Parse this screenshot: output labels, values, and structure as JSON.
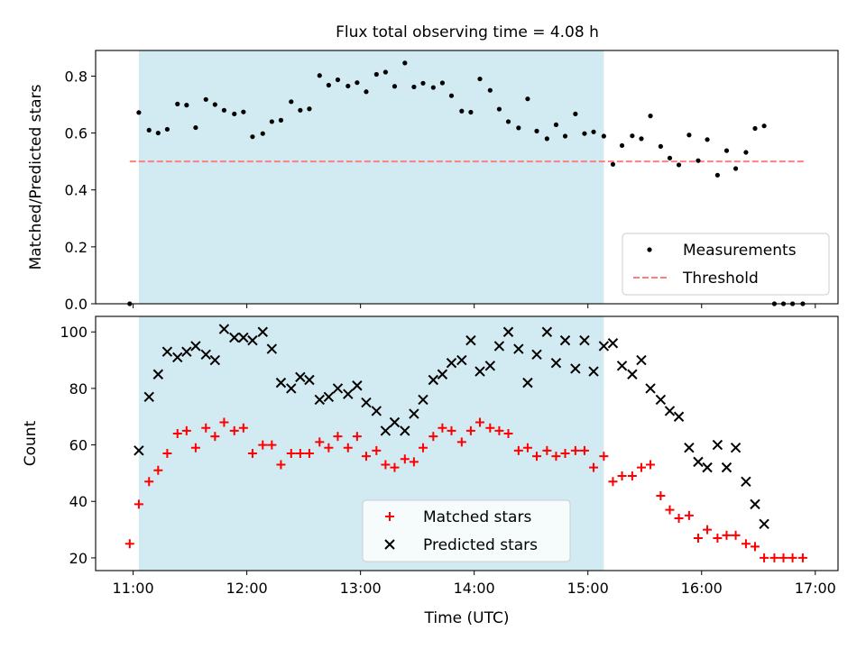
{
  "title": "Flux total observing time = 4.08 h",
  "colors": {
    "span": "#add8e6",
    "threshold": "#ff7f7f",
    "matched": "#ff0000",
    "predicted": "#000000",
    "measurement": "#000000"
  },
  "chart_data": [
    {
      "type": "scatter",
      "id": "ratio",
      "ylabel": "Matched/Predicted stars",
      "ylim": [
        0,
        0.89
      ],
      "yticks": [
        0.0,
        0.2,
        0.4,
        0.6,
        0.8
      ],
      "ytick_labels": [
        "0.0",
        "0.2",
        "0.4",
        "0.6",
        "0.8"
      ],
      "xlim": [
        10.67,
        17.2
      ],
      "shaded_span": [
        11.05,
        15.14
      ],
      "legend": {
        "location": "lower-right",
        "entries": [
          "Measurements",
          "Threshold"
        ]
      },
      "threshold": {
        "name": "Threshold",
        "y": 0.5,
        "x": [
          10.97,
          16.9
        ],
        "style": "dashed"
      },
      "series": [
        {
          "name": "Measurements",
          "marker": "dot",
          "points": [
            [
              10.97,
              0.0
            ],
            [
              11.05,
              0.672
            ],
            [
              11.14,
              0.61
            ],
            [
              11.22,
              0.6
            ],
            [
              11.3,
              0.613
            ],
            [
              11.39,
              0.702
            ],
            [
              11.47,
              0.698
            ],
            [
              11.55,
              0.619
            ],
            [
              11.64,
              0.718
            ],
            [
              11.72,
              0.7
            ],
            [
              11.8,
              0.68
            ],
            [
              11.89,
              0.667
            ],
            [
              11.97,
              0.674
            ],
            [
              12.05,
              0.587
            ],
            [
              12.14,
              0.598
            ],
            [
              12.22,
              0.64
            ],
            [
              12.3,
              0.645
            ],
            [
              12.39,
              0.71
            ],
            [
              12.47,
              0.68
            ],
            [
              12.55,
              0.685
            ],
            [
              12.64,
              0.802
            ],
            [
              12.72,
              0.768
            ],
            [
              12.8,
              0.787
            ],
            [
              12.89,
              0.765
            ],
            [
              12.97,
              0.777
            ],
            [
              13.05,
              0.745
            ],
            [
              13.14,
              0.806
            ],
            [
              13.22,
              0.814
            ],
            [
              13.3,
              0.764
            ],
            [
              13.39,
              0.846
            ],
            [
              13.47,
              0.762
            ],
            [
              13.55,
              0.775
            ],
            [
              13.64,
              0.76
            ],
            [
              13.72,
              0.776
            ],
            [
              13.8,
              0.731
            ],
            [
              13.89,
              0.677
            ],
            [
              13.97,
              0.673
            ],
            [
              14.05,
              0.79
            ],
            [
              14.14,
              0.75
            ],
            [
              14.22,
              0.684
            ],
            [
              14.3,
              0.64
            ],
            [
              14.39,
              0.618
            ],
            [
              14.47,
              0.72
            ],
            [
              14.55,
              0.607
            ],
            [
              14.64,
              0.58
            ],
            [
              14.72,
              0.629
            ],
            [
              14.8,
              0.589
            ],
            [
              14.89,
              0.667
            ],
            [
              14.97,
              0.598
            ],
            [
              15.05,
              0.604
            ],
            [
              15.14,
              0.589
            ],
            [
              15.22,
              0.49
            ],
            [
              15.3,
              0.556
            ],
            [
              15.39,
              0.59
            ],
            [
              15.47,
              0.58
            ],
            [
              15.55,
              0.66
            ],
            [
              15.64,
              0.553
            ],
            [
              15.72,
              0.512
            ],
            [
              15.8,
              0.488
            ],
            [
              15.89,
              0.593
            ],
            [
              15.97,
              0.503
            ],
            [
              16.05,
              0.577
            ],
            [
              16.14,
              0.452
            ],
            [
              16.22,
              0.538
            ],
            [
              16.3,
              0.475
            ],
            [
              16.39,
              0.532
            ],
            [
              16.47,
              0.616
            ],
            [
              16.55,
              0.625
            ],
            [
              16.64,
              0.0
            ],
            [
              16.72,
              0.0
            ],
            [
              16.8,
              0.0
            ],
            [
              16.89,
              0.0
            ]
          ]
        }
      ]
    },
    {
      "type": "scatter",
      "id": "counts",
      "ylabel": "Count",
      "xlabel": "Time (UTC)",
      "ylim": [
        15.5,
        105.5
      ],
      "yticks": [
        20,
        40,
        60,
        80,
        100
      ],
      "ytick_labels": [
        "20",
        "40",
        "60",
        "80",
        "100"
      ],
      "xlim": [
        10.67,
        17.2
      ],
      "xticks": [
        11,
        12,
        13,
        14,
        15,
        16,
        17
      ],
      "xtick_labels": [
        "11:00",
        "12:00",
        "13:00",
        "14:00",
        "15:00",
        "16:00",
        "17:00"
      ],
      "shaded_span": [
        11.05,
        15.14
      ],
      "legend": {
        "location": "lower-center",
        "entries": [
          "Matched stars",
          "Predicted stars"
        ]
      },
      "series": [
        {
          "name": "Matched stars",
          "marker": "plus",
          "points": [
            [
              10.97,
              25
            ],
            [
              11.05,
              39
            ],
            [
              11.14,
              47
            ],
            [
              11.22,
              51
            ],
            [
              11.3,
              57
            ],
            [
              11.39,
              64
            ],
            [
              11.47,
              65
            ],
            [
              11.55,
              59
            ],
            [
              11.64,
              66
            ],
            [
              11.72,
              63
            ],
            [
              11.8,
              68
            ],
            [
              11.89,
              65
            ],
            [
              11.97,
              66
            ],
            [
              12.05,
              57
            ],
            [
              12.14,
              60
            ],
            [
              12.22,
              60
            ],
            [
              12.3,
              53
            ],
            [
              12.39,
              57
            ],
            [
              12.47,
              57
            ],
            [
              12.55,
              57
            ],
            [
              12.64,
              61
            ],
            [
              12.72,
              59
            ],
            [
              12.8,
              63
            ],
            [
              12.89,
              59
            ],
            [
              12.97,
              63
            ],
            [
              13.05,
              56
            ],
            [
              13.14,
              58
            ],
            [
              13.22,
              53
            ],
            [
              13.3,
              52
            ],
            [
              13.39,
              55
            ],
            [
              13.47,
              54
            ],
            [
              13.55,
              59
            ],
            [
              13.64,
              63
            ],
            [
              13.72,
              66
            ],
            [
              13.8,
              65
            ],
            [
              13.89,
              61
            ],
            [
              13.97,
              65
            ],
            [
              14.05,
              68
            ],
            [
              14.14,
              66
            ],
            [
              14.22,
              65
            ],
            [
              14.3,
              64
            ],
            [
              14.39,
              58
            ],
            [
              14.47,
              59
            ],
            [
              14.55,
              56
            ],
            [
              14.64,
              58
            ],
            [
              14.72,
              56
            ],
            [
              14.8,
              57
            ],
            [
              14.89,
              58
            ],
            [
              14.97,
              58
            ],
            [
              15.05,
              52
            ],
            [
              15.14,
              56
            ],
            [
              15.22,
              47
            ],
            [
              15.3,
              49
            ],
            [
              15.39,
              49
            ],
            [
              15.47,
              52
            ],
            [
              15.55,
              53
            ],
            [
              15.64,
              42
            ],
            [
              15.72,
              37
            ],
            [
              15.8,
              34
            ],
            [
              15.89,
              35
            ],
            [
              15.97,
              27
            ],
            [
              16.05,
              30
            ],
            [
              16.14,
              27
            ],
            [
              16.22,
              28
            ],
            [
              16.3,
              28
            ],
            [
              16.39,
              25
            ],
            [
              16.47,
              24
            ],
            [
              16.55,
              20
            ],
            [
              16.64,
              20
            ],
            [
              16.72,
              20
            ],
            [
              16.8,
              20
            ],
            [
              16.89,
              20
            ]
          ]
        },
        {
          "name": "Predicted stars",
          "marker": "x",
          "points": [
            [
              11.05,
              58
            ],
            [
              11.14,
              77
            ],
            [
              11.22,
              85
            ],
            [
              11.3,
              93
            ],
            [
              11.39,
              91
            ],
            [
              11.47,
              93
            ],
            [
              11.55,
              95
            ],
            [
              11.64,
              92
            ],
            [
              11.72,
              90
            ],
            [
              11.8,
              101
            ],
            [
              11.89,
              98
            ],
            [
              11.97,
              98
            ],
            [
              12.05,
              97
            ],
            [
              12.14,
              100
            ],
            [
              12.22,
              94
            ],
            [
              12.3,
              82
            ],
            [
              12.39,
              80
            ],
            [
              12.47,
              84
            ],
            [
              12.55,
              83
            ],
            [
              12.64,
              76
            ],
            [
              12.72,
              77
            ],
            [
              12.8,
              80
            ],
            [
              12.89,
              78
            ],
            [
              12.97,
              81
            ],
            [
              13.05,
              75
            ],
            [
              13.14,
              72
            ],
            [
              13.22,
              65
            ],
            [
              13.3,
              68
            ],
            [
              13.39,
              65
            ],
            [
              13.47,
              71
            ],
            [
              13.55,
              76
            ],
            [
              13.64,
              83
            ],
            [
              13.72,
              85
            ],
            [
              13.8,
              89
            ],
            [
              13.89,
              90
            ],
            [
              13.97,
              97
            ],
            [
              14.05,
              86
            ],
            [
              14.14,
              88
            ],
            [
              14.22,
              95
            ],
            [
              14.3,
              100
            ],
            [
              14.39,
              94
            ],
            [
              14.47,
              82
            ],
            [
              14.55,
              92
            ],
            [
              14.64,
              100
            ],
            [
              14.72,
              89
            ],
            [
              14.8,
              97
            ],
            [
              14.89,
              87
            ],
            [
              14.97,
              97
            ],
            [
              15.05,
              86
            ],
            [
              15.14,
              95
            ],
            [
              15.22,
              96
            ],
            [
              15.3,
              88
            ],
            [
              15.39,
              85
            ],
            [
              15.47,
              90
            ],
            [
              15.55,
              80
            ],
            [
              15.64,
              76
            ],
            [
              15.72,
              72
            ],
            [
              15.8,
              70
            ],
            [
              15.89,
              59
            ],
            [
              15.97,
              54
            ],
            [
              16.05,
              52
            ],
            [
              16.14,
              60
            ],
            [
              16.22,
              52
            ],
            [
              16.3,
              59
            ],
            [
              16.39,
              47
            ],
            [
              16.47,
              39
            ],
            [
              16.55,
              32
            ]
          ]
        }
      ]
    }
  ]
}
